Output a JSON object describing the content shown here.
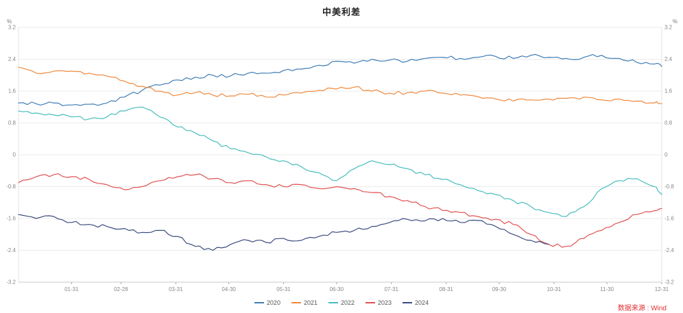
{
  "title": "中美利差",
  "source_note": "数据来源 : Wind",
  "axis_unit": "%",
  "chart_data": {
    "type": "line",
    "title": "中美利差",
    "ylabel": "%",
    "ylim": [
      -3.2,
      3.2
    ],
    "yticks": [
      3.2,
      2.4,
      1.6,
      0.8,
      0,
      -0.8,
      -1.6,
      -2.4,
      -3.2
    ],
    "grid": "horizontal",
    "legend_position": "bottom-center",
    "x_range_days": [
      0,
      364
    ],
    "xticks": [
      {
        "label": "01-31",
        "day": 30
      },
      {
        "label": "02-28",
        "day": 58
      },
      {
        "label": "03-31",
        "day": 89
      },
      {
        "label": "04-30",
        "day": 119
      },
      {
        "label": "05-31",
        "day": 150
      },
      {
        "label": "06-30",
        "day": 180
      },
      {
        "label": "07-31",
        "day": 211
      },
      {
        "label": "08-31",
        "day": 242
      },
      {
        "label": "09-30",
        "day": 272
      },
      {
        "label": "10-31",
        "day": 303
      },
      {
        "label": "11-30",
        "day": 333
      },
      {
        "label": "12-31",
        "day": 364
      }
    ],
    "x_days": [
      0,
      10,
      20,
      30,
      40,
      50,
      60,
      70,
      80,
      90,
      100,
      110,
      120,
      130,
      140,
      150,
      160,
      170,
      180,
      190,
      200,
      210,
      220,
      230,
      240,
      250,
      260,
      270,
      280,
      290,
      300,
      310,
      320,
      330,
      340,
      350,
      360,
      364
    ],
    "series": [
      {
        "name": "2020",
        "color": "#3d7bb5",
        "values": [
          1.3,
          1.28,
          1.3,
          1.25,
          1.27,
          1.3,
          1.45,
          1.62,
          1.75,
          1.88,
          1.95,
          2.0,
          1.98,
          2.05,
          2.05,
          2.12,
          2.15,
          2.25,
          2.35,
          2.3,
          2.4,
          2.38,
          2.35,
          2.42,
          2.45,
          2.42,
          2.45,
          2.47,
          2.42,
          2.5,
          2.45,
          2.42,
          2.45,
          2.5,
          2.42,
          2.32,
          2.28,
          2.22
        ]
      },
      {
        "name": "2021",
        "color": "#f0883a",
        "values": [
          2.2,
          2.05,
          2.1,
          2.1,
          2.05,
          1.98,
          1.85,
          1.72,
          1.6,
          1.5,
          1.56,
          1.5,
          1.48,
          1.52,
          1.45,
          1.5,
          1.55,
          1.62,
          1.65,
          1.7,
          1.6,
          1.55,
          1.56,
          1.6,
          1.55,
          1.5,
          1.46,
          1.4,
          1.35,
          1.38,
          1.4,
          1.42,
          1.45,
          1.38,
          1.4,
          1.35,
          1.3,
          1.28
        ]
      },
      {
        "name": "2022",
        "color": "#46bcbc",
        "values": [
          1.1,
          1.05,
          1.0,
          0.95,
          0.9,
          0.95,
          1.1,
          1.2,
          0.95,
          0.7,
          0.55,
          0.35,
          0.15,
          0.05,
          -0.05,
          -0.15,
          -0.3,
          -0.45,
          -0.65,
          -0.35,
          -0.15,
          -0.25,
          -0.35,
          -0.5,
          -0.62,
          -0.75,
          -0.9,
          -1.0,
          -1.15,
          -1.3,
          -1.45,
          -1.55,
          -1.3,
          -0.85,
          -0.65,
          -0.6,
          -0.8,
          -1.0
        ]
      },
      {
        "name": "2023",
        "color": "#e15050",
        "values": [
          -0.7,
          -0.55,
          -0.5,
          -0.55,
          -0.62,
          -0.75,
          -0.88,
          -0.8,
          -0.65,
          -0.55,
          -0.5,
          -0.6,
          -0.7,
          -0.65,
          -0.75,
          -0.8,
          -0.75,
          -0.85,
          -0.8,
          -0.85,
          -0.95,
          -1.05,
          -1.15,
          -1.3,
          -1.4,
          -1.45,
          -1.55,
          -1.62,
          -1.75,
          -2.0,
          -2.25,
          -2.3,
          -2.1,
          -1.9,
          -1.7,
          -1.5,
          -1.4,
          -1.35
        ]
      },
      {
        "name": "2024",
        "color": "#3a4a7e",
        "values": [
          -1.5,
          -1.6,
          -1.55,
          -1.7,
          -1.75,
          -1.8,
          -1.85,
          -1.95,
          -1.9,
          -2.05,
          -2.3,
          -2.4,
          -2.25,
          -2.15,
          -2.2,
          -2.1,
          -2.15,
          -2.05,
          -1.95,
          -1.9,
          -1.8,
          -1.7,
          -1.62,
          -1.66,
          -1.6,
          -1.7,
          -1.65,
          -1.8,
          -2.0,
          -2.15,
          -2.25
        ]
      }
    ]
  }
}
